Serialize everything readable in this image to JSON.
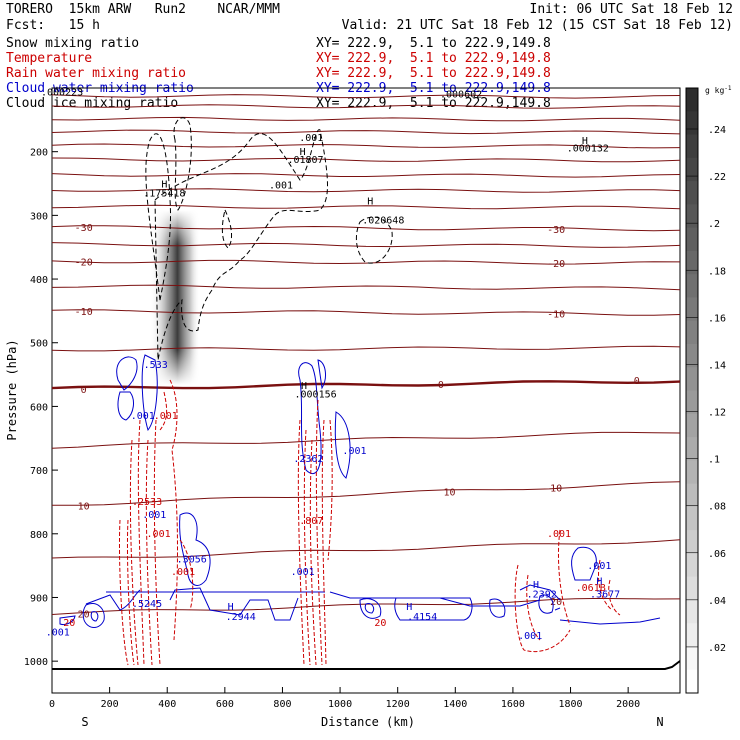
{
  "header": {
    "line1_left": "TORERO  15km ARW   Run2    NCAR/MMM",
    "line1_right": "Init: 06 UTC Sat 18 Feb 12",
    "line2_left": "Fcst:   15 h",
    "line2_right": "Valid: 21 UTC Sat 18 Feb 12 (15 CST Sat 18 Feb 12)"
  },
  "fields": [
    {
      "name": "Snow mixing ratio",
      "xy": "XY= 222.9,  5.1 to 222.9,149.8",
      "color": "#000000"
    },
    {
      "name": "Temperature",
      "xy": "XY= 222.9,  5.1 to 222.9,149.8",
      "color": "#cc0000"
    },
    {
      "name": "Rain water mixing ratio",
      "xy": "XY= 222.9,  5.1 to 222.9,149.8",
      "color": "#cc0000"
    },
    {
      "name": "Cloud water mixing ratio",
      "xy": "XY= 222.9,  5.1 to 222.9,149.8",
      "color": "#0000cc"
    },
    {
      "name": "Cloud ice mixing ratio",
      "xy": "XY= 222.9,  5.1 to 222.9,149.8",
      "color": "#000000"
    }
  ],
  "chart_data": {
    "type": "contour-cross-section",
    "xlabel": "Distance (km)",
    "ylabel": "Pressure (hPa)",
    "xlim": [
      0,
      2180
    ],
    "ylim": [
      1050,
      100
    ],
    "x_ticks": [
      0,
      200,
      400,
      600,
      800,
      1000,
      1200,
      1400,
      1600,
      1800,
      2000
    ],
    "y_ticks": [
      200,
      300,
      400,
      500,
      600,
      700,
      800,
      900,
      1000
    ],
    "x_end_labels": {
      "left": "S",
      "right": "N"
    },
    "colorbar": {
      "unit": "g kg",
      "unit_exp": "-1",
      "ticks": [
        ".02",
        ".04",
        ".06",
        ".08",
        ".1",
        ".12",
        ".14",
        ".16",
        ".18",
        ".2",
        ".22",
        ".24"
      ]
    },
    "isotherms": [
      {
        "label": "-30",
        "p_left": 318,
        "p_right": 322
      },
      {
        "label": "-20",
        "p_left": 372,
        "p_right": 375
      },
      {
        "label": "-10",
        "p_left": 450,
        "p_right": 455
      },
      {
        "label": "0",
        "p_left": 572,
        "p_right": 560
      },
      {
        "label": "10",
        "p_left": 755,
        "p_right": 720
      },
      {
        "label": "20",
        "p_left": 925,
        "p_right": 900
      }
    ],
    "labels": [
      {
        "text": ".001",
        "x": 900,
        "p": 183,
        "color": "#000000"
      },
      {
        "text": "H",
        "x": 870,
        "p": 205,
        "color": "#000000"
      },
      {
        "text": ".01807",
        "x": 880,
        "p": 218,
        "color": "#000000"
      },
      {
        "text": ".001",
        "x": 795,
        "p": 258,
        "color": "#000000"
      },
      {
        "text": "H",
        "x": 390,
        "p": 256,
        "color": "#000000"
      },
      {
        "text": ".175418",
        "x": 390,
        "p": 270,
        "color": "#000000"
      },
      {
        "text": "H",
        "x": 1105,
        "p": 283,
        "color": "#000000"
      },
      {
        "text": ".020648",
        "x": 1150,
        "p": 313,
        "color": "#000000"
      },
      {
        "text": "H",
        "x": 1850,
        "p": 188,
        "color": "#000000"
      },
      {
        "text": ".000132",
        "x": 1860,
        "p": 200,
        "color": "#000000"
      },
      {
        "text": ".000223",
        "x": 35,
        "p": 112,
        "color": "#000000"
      },
      {
        "text": ".000602",
        "x": 1420,
        "p": 115,
        "color": "#000000"
      },
      {
        "text": "H",
        "x": 875,
        "p": 573,
        "color": "#000000"
      },
      {
        "text": ".000156",
        "x": 915,
        "p": 586,
        "color": "#000000"
      },
      {
        "text": ".533",
        "x": 360,
        "p": 540,
        "color": "#0000cc"
      },
      {
        "text": ".001",
        "x": 315,
        "p": 620,
        "color": "#0000cc"
      },
      {
        "text": ".001",
        "x": 395,
        "p": 620,
        "color": "#cc0000"
      },
      {
        "text": ".2362",
        "x": 890,
        "p": 687,
        "color": "#0000cc"
      },
      {
        "text": ".001",
        "x": 1050,
        "p": 675,
        "color": "#0000cc"
      },
      {
        "text": ".2533",
        "x": 330,
        "p": 755,
        "color": "#cc0000"
      },
      {
        "text": ".001",
        "x": 355,
        "p": 775,
        "color": "#0000cc"
      },
      {
        "text": ".001",
        "x": 370,
        "p": 805,
        "color": "#cc0000"
      },
      {
        "text": ".3056",
        "x": 485,
        "p": 845,
        "color": "#0000cc"
      },
      {
        "text": ".001",
        "x": 455,
        "p": 865,
        "color": "#cc0000"
      },
      {
        "text": ".807",
        "x": 900,
        "p": 785,
        "color": "#cc0000"
      },
      {
        "text": ".001",
        "x": 870,
        "p": 865,
        "color": "#0000cc"
      },
      {
        "text": ".5245",
        "x": 330,
        "p": 915,
        "color": "#0000cc"
      },
      {
        "text": "H",
        "x": 620,
        "p": 920,
        "color": "#0000cc"
      },
      {
        "text": ".2944",
        "x": 655,
        "p": 935,
        "color": "#0000cc"
      },
      {
        "text": "H",
        "x": 1240,
        "p": 920,
        "color": "#0000cc"
      },
      {
        "text": ".4154",
        "x": 1285,
        "p": 935,
        "color": "#0000cc"
      },
      {
        "text": "H",
        "x": 1680,
        "p": 885,
        "color": "#0000cc"
      },
      {
        "text": ".2392",
        "x": 1700,
        "p": 900,
        "color": "#0000cc"
      },
      {
        "text": ".001",
        "x": 1760,
        "p": 805,
        "color": "#cc0000"
      },
      {
        "text": ".061B",
        "x": 1870,
        "p": 890,
        "color": "#cc0000"
      },
      {
        "text": "H",
        "x": 1900,
        "p": 880,
        "color": "#0000cc"
      },
      {
        "text": ".3677",
        "x": 1920,
        "p": 900,
        "color": "#0000cc"
      },
      {
        "text": ".001",
        "x": 1900,
        "p": 855,
        "color": "#0000cc"
      },
      {
        "text": ".001",
        "x": 1660,
        "p": 965,
        "color": "#0000cc"
      },
      {
        "text": ".001",
        "x": 20,
        "p": 960,
        "color": "#0000cc"
      },
      {
        "text": "20",
        "x": 60,
        "p": 945,
        "color": "#cc0000"
      },
      {
        "text": "20",
        "x": 1140,
        "p": 945,
        "color": "#cc0000"
      }
    ]
  }
}
